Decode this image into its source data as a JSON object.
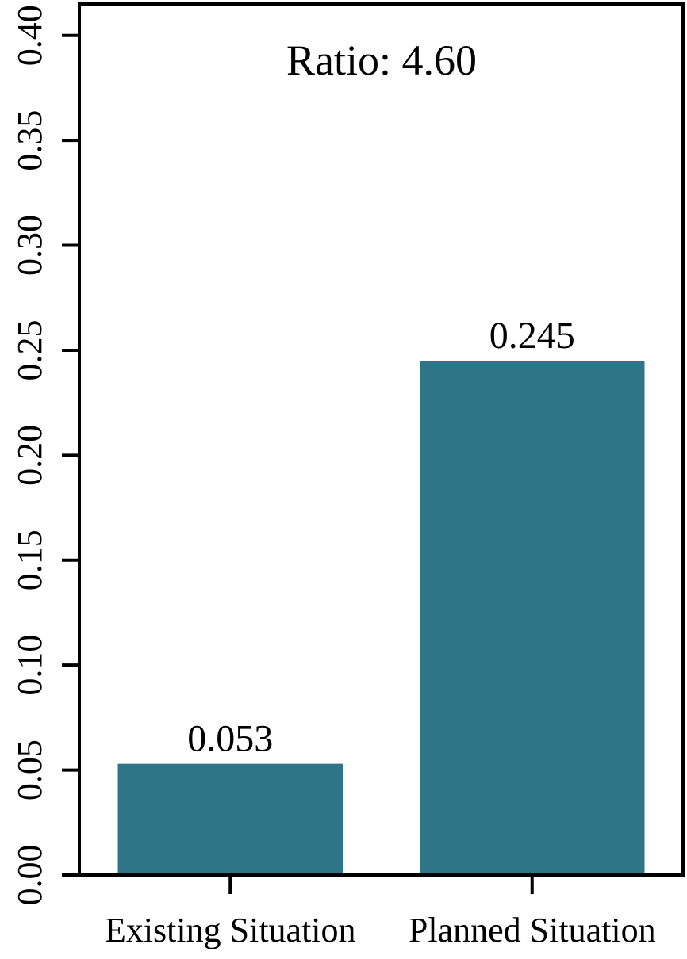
{
  "chart_data": {
    "type": "bar",
    "title": "",
    "xlabel": "",
    "ylabel": "",
    "categories": [
      "Existing Situation",
      "Planned Situation"
    ],
    "values": [
      0.053,
      0.245
    ],
    "value_labels": [
      "0.053",
      "0.245"
    ],
    "annotation": "Ratio: 4.60",
    "ylim": [
      0,
      0.415
    ],
    "yticks": [
      0.0,
      0.05,
      0.1,
      0.15,
      0.2,
      0.25,
      0.3,
      0.35,
      0.4
    ],
    "ytick_labels": [
      "0.00",
      "0.05",
      "0.10",
      "0.15",
      "0.20",
      "0.25",
      "0.30",
      "0.35",
      "0.40"
    ],
    "bar_color": "#2e7587",
    "grid": false,
    "legend": "none"
  }
}
